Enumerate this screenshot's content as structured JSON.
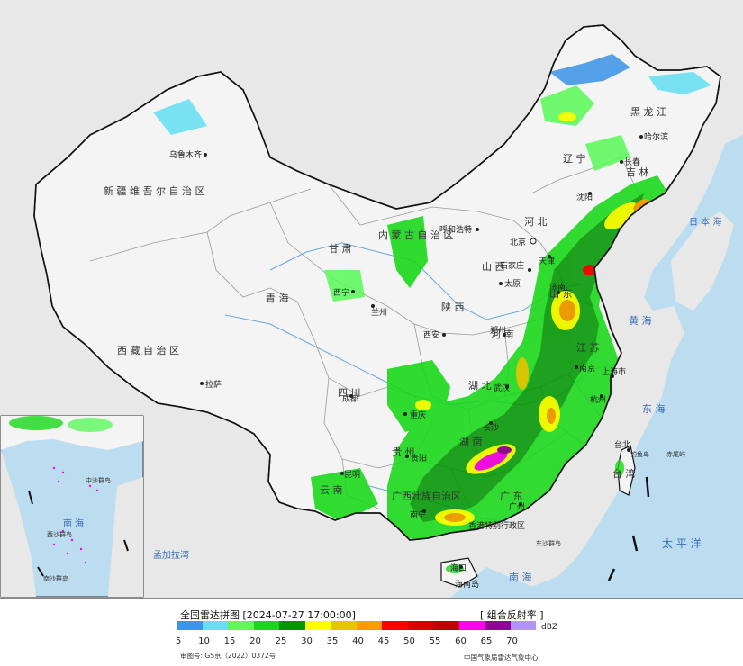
{
  "legend": {
    "title": "全国雷达拼图 [2024-07-27 17:00:00]",
    "product": "[ 组合反射率 ]",
    "unit": "dBZ",
    "ticks": [
      "5",
      "10",
      "15",
      "20",
      "25",
      "30",
      "35",
      "40",
      "45",
      "50",
      "55",
      "60",
      "65",
      "70"
    ],
    "colors": [
      "#3e94e8",
      "#66dff2",
      "#5cf95c",
      "#16d816",
      "#009600",
      "#ffff00",
      "#e6c400",
      "#ff9a00",
      "#ff0000",
      "#d80000",
      "#c00000",
      "#ff00f0",
      "#960096",
      "#b294f2"
    ]
  },
  "footer": {
    "approval_no": "审图号: GS京（2022）0372号",
    "agency": "中国气象局雷达气象中心"
  },
  "labels": {
    "xinjiang": "新 疆 维 吾 尔 自 治 区",
    "tibet": "西 藏 自 治 区",
    "qinghai": "青 海",
    "gansu": "甘 肃",
    "innermongolia": "内 蒙 古 自 治 区",
    "heilongjiang": "黑 龙 江",
    "jilin": "吉 林",
    "liaoning": "辽 宁",
    "hebei": "河 北",
    "shanxi": "山 西",
    "shaanxi": "陕 西",
    "henan": "河 南",
    "shandong": "山 东",
    "jiangsu": "江 苏",
    "sichuan": "四 川",
    "hubei": "湖 北",
    "hunan": "湖 南",
    "yunnan": "云 南",
    "guizhou": "贵 州",
    "guangxi": "广西壮族自治区",
    "guangdong": "广 东",
    "hainan": "海南岛",
    "taiwan": "台 湾",
    "urumqi": "乌鲁木齐",
    "lhasa": "拉萨",
    "xining": "西宁",
    "lanzhou": "兰州",
    "hohhot": "呼和浩特",
    "beijing": "北京",
    "tianjin": "天津",
    "shijiazhuang": "石家庄",
    "taiyuan": "太原",
    "xian": "西安",
    "zhengzhou": "郑州",
    "jinan": "济南",
    "nanjing": "南京",
    "shanghai": "上海市",
    "hangzhou": "杭州",
    "chengdu": "成都",
    "chongqing": "重庆",
    "wuhan": "武汉",
    "changsha": "长沙",
    "kunming": "昆明",
    "guiyang": "贵阳",
    "nanning": "南宁",
    "guangzhou": "广州",
    "haikou": "海口",
    "harbin": "哈尔滨",
    "changchun": "长春",
    "shenyang": "沈阳",
    "taipei": "台北",
    "yellow_sea": "黄 海",
    "east_sea": "东 海",
    "pacific": "太 平 洋",
    "south_sea": "南 海",
    "bengal": "孟加拉湾",
    "japan_sea": "日 本 海",
    "diaoyu": "钓鱼岛",
    "chiwei": "赤尾屿",
    "dongsha": "东沙群岛",
    "xisha": "西沙群岛",
    "zhongsha": "中沙群岛",
    "nansha": "南沙群岛",
    "hongkong": "香港特别行政区",
    "inset_label": "南 海"
  }
}
